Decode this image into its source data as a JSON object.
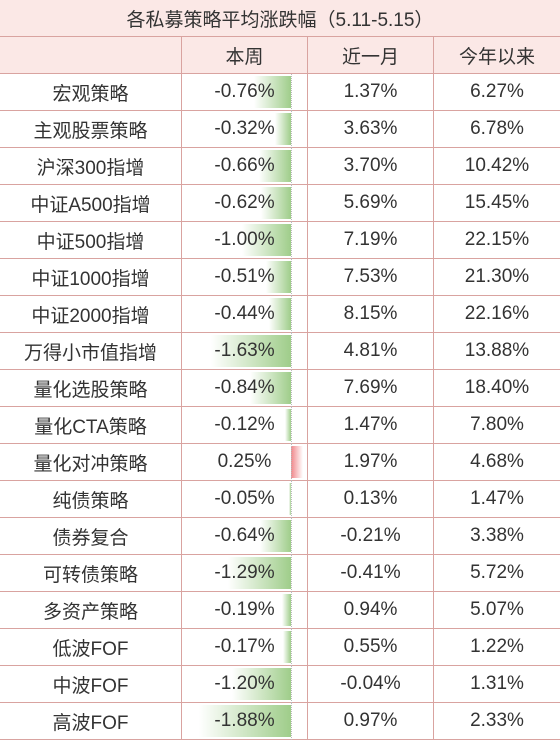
{
  "title": "各私募策略平均涨跌幅（5.11-5.15）",
  "table": {
    "header": [
      "本周",
      "近一月",
      "今年以来"
    ],
    "rows": [
      [
        "宏观策略",
        "-0.76%",
        "1.37%",
        "6.27%"
      ],
      [
        "主观股票策略",
        "-0.32%",
        "3.63%",
        "6.78%"
      ],
      [
        "沪深300指增",
        "-0.66%",
        "3.70%",
        "10.42%"
      ],
      [
        "中证A500指增",
        "-0.62%",
        "5.69%",
        "15.45%"
      ],
      [
        "中证500指增",
        "-1.00%",
        "7.19%",
        "22.15%"
      ],
      [
        "中证1000指增",
        "-0.51%",
        "7.53%",
        "21.30%"
      ],
      [
        "中证2000指增",
        "-0.44%",
        "8.15%",
        "22.16%"
      ],
      [
        "万得小市值指增",
        "-1.63%",
        "4.81%",
        "13.88%"
      ],
      [
        "量化选股策略",
        "-0.84%",
        "7.69%",
        "18.40%"
      ],
      [
        "量化CTA策略",
        "-0.12%",
        "1.47%",
        "7.80%"
      ],
      [
        "量化对冲策略",
        "0.25%",
        "1.97%",
        "4.68%"
      ],
      [
        "纯债策略",
        "-0.05%",
        "0.13%",
        "1.47%"
      ],
      [
        "债券复合",
        "-0.64%",
        "-0.21%",
        "3.38%"
      ],
      [
        "可转债策略",
        "-1.29%",
        "-0.41%",
        "5.72%"
      ],
      [
        "多资产策略",
        "-0.19%",
        "0.94%",
        "5.07%"
      ],
      [
        "低波FOF",
        "-0.17%",
        "0.55%",
        "1.22%"
      ],
      [
        "中波FOF",
        "-1.20%",
        "-0.04%",
        "1.31%"
      ],
      [
        "高波FOF",
        "-1.88%",
        "0.97%",
        "2.33%"
      ]
    ]
  }
}
